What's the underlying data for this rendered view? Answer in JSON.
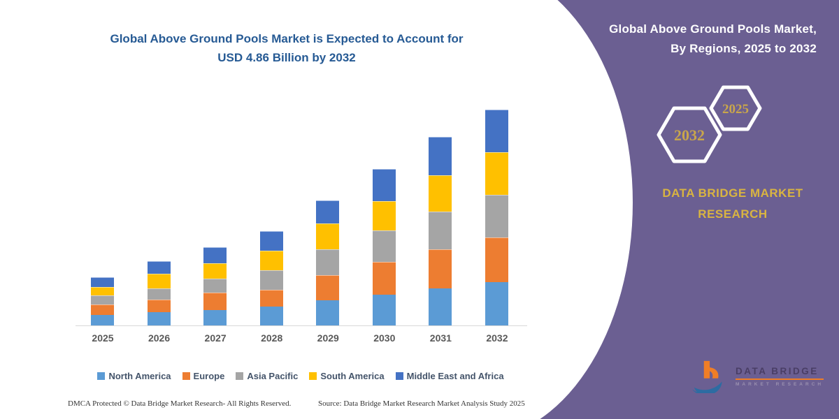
{
  "title": {
    "line1": "Global Above Ground Pools Market is Expected to Account for",
    "line2": "USD 4.86 Billion by 2032"
  },
  "chart_data": {
    "type": "bar",
    "stacked": true,
    "title": "Global Above Ground Pools Market is Expected to Account for USD 4.86 Billion by 2032",
    "unit": "USD Billion",
    "categories": [
      "2025",
      "2026",
      "2027",
      "2028",
      "2029",
      "2030",
      "2031",
      "2032"
    ],
    "series": [
      {
        "name": "North America",
        "color": "#5B9BD5",
        "values": [
          0.23,
          0.3,
          0.35,
          0.43,
          0.56,
          0.7,
          0.84,
          0.98
        ]
      },
      {
        "name": "Europe",
        "color": "#ED7D31",
        "values": [
          0.25,
          0.29,
          0.39,
          0.37,
          0.58,
          0.73,
          0.88,
          1.0
        ]
      },
      {
        "name": "Asia Pacific",
        "color": "#A5A5A5",
        "values": [
          0.2,
          0.24,
          0.32,
          0.45,
          0.58,
          0.72,
          0.85,
          0.96
        ]
      },
      {
        "name": "South America",
        "color": "#FFC000",
        "values": [
          0.19,
          0.34,
          0.34,
          0.43,
          0.58,
          0.66,
          0.81,
          0.96
        ]
      },
      {
        "name": "Middle East and Africa",
        "color": "#4472C4",
        "values": [
          0.21,
          0.28,
          0.37,
          0.44,
          0.52,
          0.72,
          0.87,
          0.96
        ]
      }
    ],
    "totals": [
      1.08,
      1.45,
      1.77,
      2.12,
      2.82,
      3.53,
      4.25,
      4.86
    ],
    "ylim": [
      0,
      5.2
    ],
    "grid": false,
    "legend_position": "bottom",
    "xlabel": "",
    "ylabel": ""
  },
  "footer": {
    "left": "DMCA Protected © Data Bridge Market Research-  All Rights Reserved.",
    "source": "Source: Data Bridge Market Research  Market Analysis Study 2025"
  },
  "panel": {
    "heading_line1": "Global Above Ground Pools Market,",
    "heading_line2": "By Regions, 2025 to 2032",
    "hex_large": "2032",
    "hex_small": "2025",
    "brand": {
      "line1": "DATA BRIDGE MARKET",
      "line2": "RESEARCH"
    },
    "logo": {
      "name": "DATA BRIDGE",
      "sub": "MARKET RESEARCH"
    },
    "colors": {
      "panel": "#6B5F92",
      "gold": "#C9A64B",
      "brand_gold": "#D9B441",
      "title_blue": "#265A94",
      "logo_orange": "#F07E26",
      "logo_blue": "#2D6CA2"
    }
  }
}
